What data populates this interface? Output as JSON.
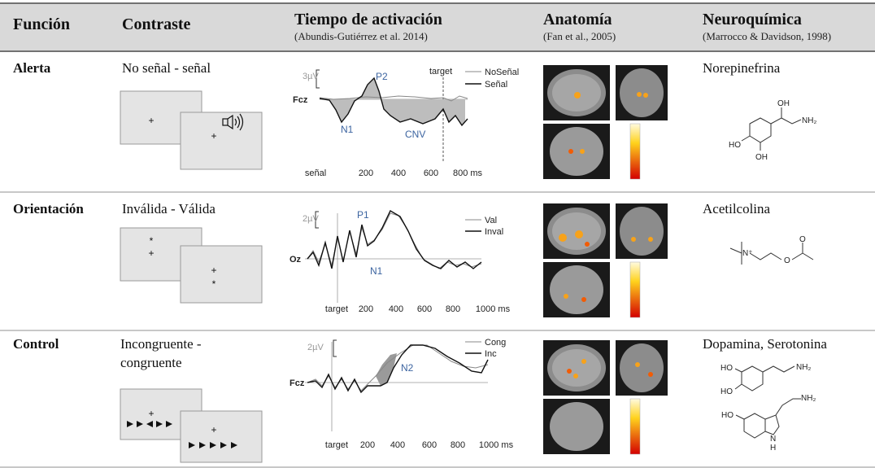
{
  "header": {
    "columns": [
      {
        "title": "Función"
      },
      {
        "title": "Contraste"
      },
      {
        "title": "Tiempo de activación",
        "subtitle": "(Abundis-Gutiérrez et al. 2014)"
      },
      {
        "title": "Anatomía",
        "subtitle": "(Fan et al., 2005)"
      },
      {
        "title": "Neuroquímica",
        "subtitle": "(Marrocco & Davidson, 1998)"
      }
    ]
  },
  "rows": [
    {
      "function": "Alerta",
      "contrast": "No señal - señal",
      "cue_symbols": [
        "+",
        "+"
      ],
      "erp": {
        "scale": "3µV",
        "electrode": "Fcz",
        "legend": [
          "NoSeñal",
          "Señal"
        ],
        "components": [
          "P2",
          "N1",
          "CNV"
        ],
        "marker": "target",
        "xticks": [
          "señal",
          "200",
          "400",
          "600",
          "800 ms"
        ]
      },
      "neurochemical": "Norepinefrina",
      "molecule_labels": [
        "OH",
        "NH₂",
        "HO",
        "OH"
      ]
    },
    {
      "function": "Orientación",
      "contrast": "Inválida - Válida",
      "cue_symbols": [
        "*",
        "+",
        "+",
        "*"
      ],
      "erp": {
        "scale": "2µV",
        "electrode": "Oz",
        "legend": [
          "Val",
          "Inval"
        ],
        "components": [
          "P1",
          "N1"
        ],
        "xticks": [
          "target",
          "200",
          "400",
          "600",
          "800",
          "1000 ms"
        ]
      },
      "neurochemical": "Acetilcolina",
      "molecule_labels": [
        "N⁺",
        "O",
        "O"
      ]
    },
    {
      "function": "Control",
      "contrast": "Incongruente - congruente",
      "cue_symbols": [
        "+",
        "+"
      ],
      "erp": {
        "scale": "2µV",
        "electrode": "Fcz",
        "legend": [
          "Cong",
          "Inc"
        ],
        "components": [
          "N2"
        ],
        "xticks": [
          "target",
          "200",
          "400",
          "600",
          "800",
          "1000 ms"
        ]
      },
      "neurochemical": "Dopamina, Serotonina",
      "molecule_labels": [
        "HO",
        "NH₂",
        "HO",
        "NH₂",
        "HO",
        "N",
        "H"
      ]
    }
  ]
}
